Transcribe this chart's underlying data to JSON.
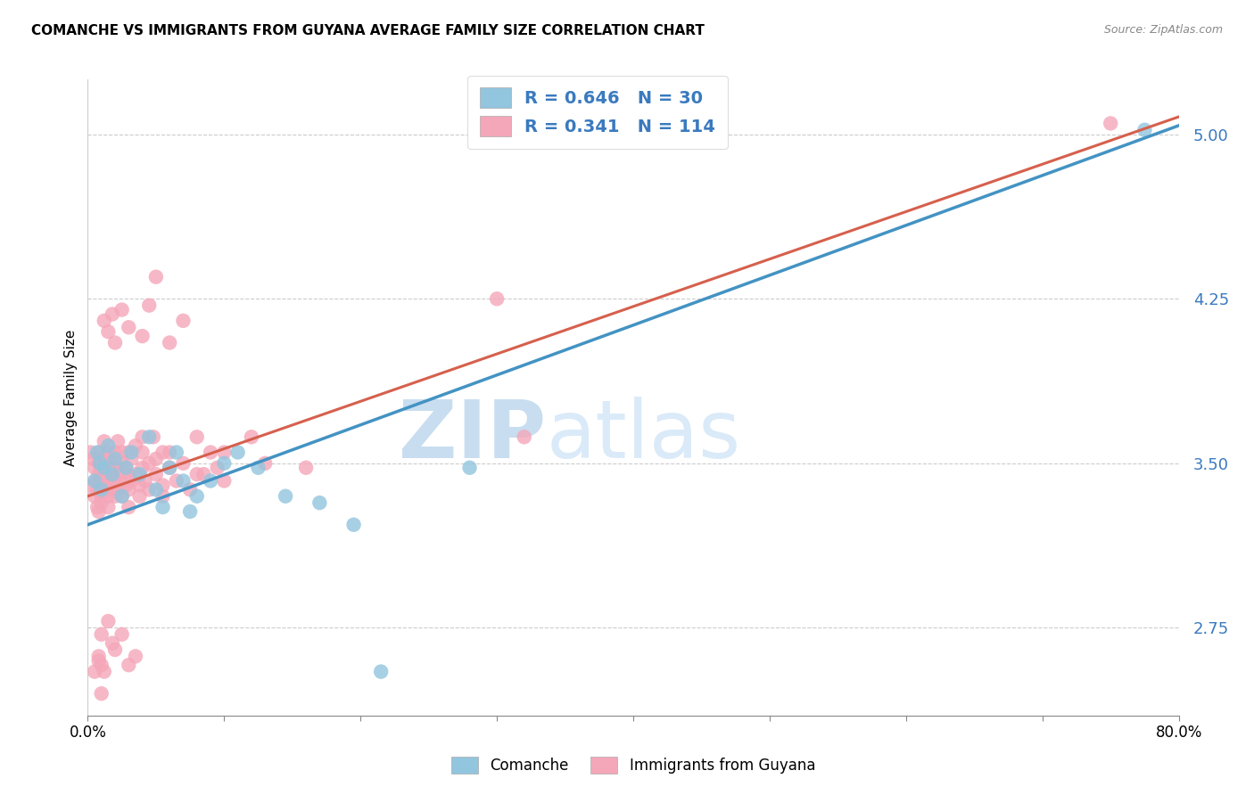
{
  "title": "COMANCHE VS IMMIGRANTS FROM GUYANA AVERAGE FAMILY SIZE CORRELATION CHART",
  "source": "Source: ZipAtlas.com",
  "ylabel": "Average Family Size",
  "yticks": [
    2.75,
    3.5,
    4.25,
    5.0
  ],
  "xlim": [
    0.0,
    0.8
  ],
  "ylim": [
    2.35,
    5.25
  ],
  "blue_R": "0.646",
  "blue_N": "30",
  "pink_R": "0.341",
  "pink_N": "114",
  "blue_dot_color": "#92c5de",
  "pink_dot_color": "#f4a7b9",
  "blue_line_color": "#4393c3",
  "pink_line_color": "#d6604d",
  "gray_line_color": "#bbbbbb",
  "legend_blue_label": "Comanche",
  "legend_pink_label": "Immigrants from Guyana",
  "watermark_text": "ZIPatlas",
  "blue_line_x0": 0.0,
  "blue_line_y0": 3.22,
  "blue_line_x1": 0.8,
  "blue_line_y1": 5.04,
  "pink_line_x0": 0.0,
  "pink_line_y0": 3.35,
  "pink_line_x1": 0.8,
  "pink_line_y1": 5.08,
  "gray_line_x0": 0.0,
  "gray_line_y0": 3.22,
  "gray_line_x1": 0.8,
  "gray_line_y1": 5.04,
  "blue_scatter_x": [
    0.005,
    0.007,
    0.009,
    0.01,
    0.012,
    0.015,
    0.018,
    0.02,
    0.025,
    0.028,
    0.032,
    0.038,
    0.045,
    0.05,
    0.055,
    0.06,
    0.065,
    0.07,
    0.075,
    0.08,
    0.09,
    0.1,
    0.11,
    0.125,
    0.145,
    0.17,
    0.195,
    0.215,
    0.28,
    0.775
  ],
  "blue_scatter_y": [
    3.42,
    3.55,
    3.5,
    3.38,
    3.48,
    3.58,
    3.45,
    3.52,
    3.35,
    3.48,
    3.55,
    3.45,
    3.62,
    3.38,
    3.3,
    3.48,
    3.55,
    3.42,
    3.28,
    3.35,
    3.42,
    3.5,
    3.55,
    3.48,
    3.35,
    3.32,
    3.22,
    2.55,
    3.48,
    5.02
  ],
  "pink_scatter_x": [
    0.002,
    0.003,
    0.004,
    0.005,
    0.005,
    0.006,
    0.007,
    0.007,
    0.008,
    0.008,
    0.008,
    0.009,
    0.009,
    0.01,
    0.01,
    0.01,
    0.01,
    0.01,
    0.01,
    0.01,
    0.012,
    0.012,
    0.012,
    0.012,
    0.012,
    0.015,
    0.015,
    0.015,
    0.015,
    0.015,
    0.015,
    0.015,
    0.018,
    0.018,
    0.018,
    0.018,
    0.02,
    0.02,
    0.02,
    0.02,
    0.02,
    0.022,
    0.022,
    0.022,
    0.025,
    0.025,
    0.025,
    0.025,
    0.028,
    0.028,
    0.03,
    0.03,
    0.03,
    0.03,
    0.032,
    0.032,
    0.035,
    0.035,
    0.038,
    0.038,
    0.04,
    0.04,
    0.042,
    0.045,
    0.045,
    0.048,
    0.05,
    0.05,
    0.055,
    0.055,
    0.06,
    0.06,
    0.065,
    0.07,
    0.075,
    0.08,
    0.085,
    0.09,
    0.095,
    0.1,
    0.01,
    0.015,
    0.018,
    0.02,
    0.025,
    0.03,
    0.035,
    0.005,
    0.008,
    0.01,
    0.012,
    0.015,
    0.02,
    0.025,
    0.03,
    0.018,
    0.04,
    0.045,
    0.05,
    0.06,
    0.07,
    0.08,
    0.1,
    0.12,
    0.3,
    0.32,
    0.13,
    0.16,
    0.04,
    0.055,
    0.01,
    0.008,
    0.012,
    0.75
  ],
  "pink_scatter_y": [
    3.55,
    3.4,
    3.52,
    3.48,
    3.35,
    3.42,
    3.38,
    3.3,
    3.45,
    3.5,
    3.28,
    3.55,
    3.4,
    3.45,
    3.35,
    3.52,
    3.38,
    3.48,
    3.42,
    3.32,
    3.6,
    3.45,
    3.38,
    3.5,
    3.42,
    3.55,
    3.4,
    3.48,
    3.35,
    3.3,
    3.45,
    3.52,
    3.42,
    3.5,
    3.38,
    3.45,
    3.55,
    3.4,
    3.48,
    3.35,
    3.42,
    3.6,
    3.45,
    3.38,
    3.55,
    3.5,
    3.42,
    3.35,
    3.48,
    3.4,
    3.55,
    3.45,
    3.38,
    3.3,
    3.52,
    3.42,
    3.58,
    3.45,
    3.4,
    3.35,
    3.55,
    3.48,
    3.42,
    3.5,
    3.38,
    3.62,
    3.45,
    3.52,
    3.4,
    3.35,
    3.48,
    3.55,
    3.42,
    3.5,
    3.38,
    3.62,
    3.45,
    3.55,
    3.48,
    3.42,
    2.72,
    2.78,
    2.68,
    2.65,
    2.72,
    2.58,
    2.62,
    2.55,
    2.6,
    2.45,
    4.15,
    4.1,
    4.05,
    4.2,
    4.12,
    4.18,
    4.08,
    4.22,
    4.35,
    4.05,
    4.15,
    3.45,
    3.55,
    3.62,
    4.25,
    3.62,
    3.5,
    3.48,
    3.62,
    3.55,
    2.58,
    2.62,
    2.55,
    5.05
  ]
}
